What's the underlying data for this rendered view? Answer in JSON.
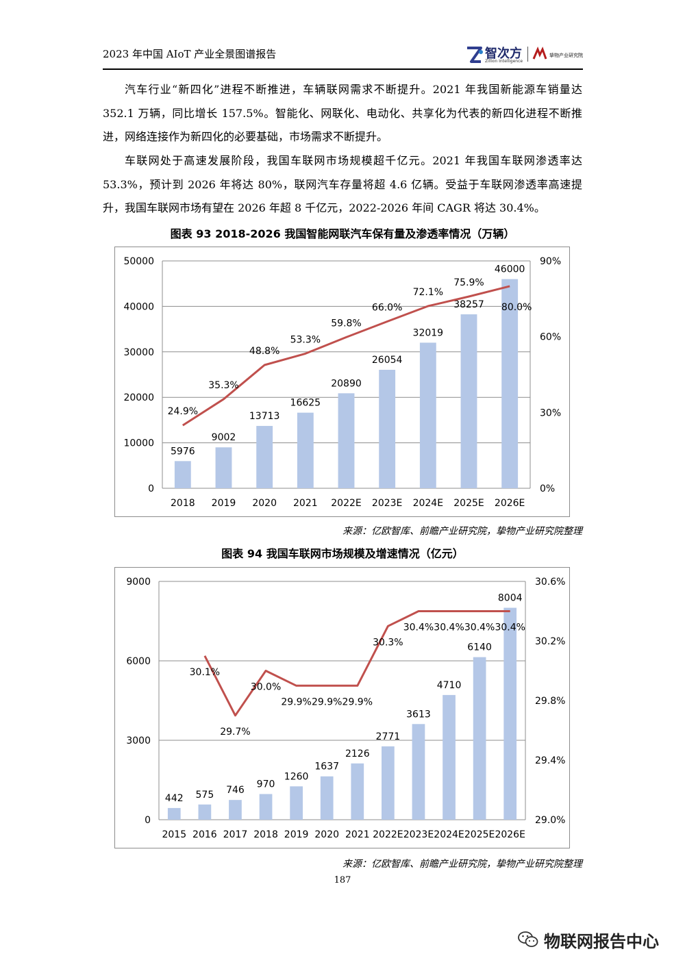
{
  "header": {
    "title": "2023 年中国 AIoT 产业全景图谱报告",
    "logo_main": "智次方",
    "logo_sub": "Zillion Intelligence",
    "logo_partner": "挚物产业研究院"
  },
  "paragraphs": [
    "汽车行业“新四化”进程不断推进，车辆联网需求不断提升。2021 年我国新能源车销量达 352.1 万辆，同比增长 157.5%。智能化、网联化、电动化、共享化为代表的新四化进程不断推进，网络连接作为新四化的必要基础，市场需求不断提升。",
    "车联网处于高速发展阶段，我国车联网市场规模超千亿元。2021 年我国车联网渗透率达 53.3%，预计到 2026 年将达 80%，联网汽车存量将超 4.6 亿辆。受益于车联网渗透率高速提升，我国车联网市场有望在 2026 年超 8 千亿元，2022-2026 年间 CAGR 将达 30.4%。"
  ],
  "figures": [
    {
      "caption": "图表 93   2018-2026 我国智能网联汽车保有量及渗透率情况（万辆）",
      "source": "来源：亿欧智库、前瞻产业研究院，挚物产业研究院整理"
    },
    {
      "caption": "图表 94   我国车联网市场规模及增速情况（亿元）",
      "source": "来源：亿欧智库、前瞻产业研究院，挚物产业研究院整理"
    }
  ],
  "page_number": "187",
  "watermark": "物联网报告中心",
  "chart_data": [
    {
      "type": "bar",
      "categories": [
        "2018",
        "2019",
        "2020",
        "2021",
        "2022E",
        "2023E",
        "2024E",
        "2025E",
        "2026E"
      ],
      "series": [
        {
          "type": "bar",
          "axis": "left",
          "color": "#b4c7e7",
          "values": [
            5976,
            9002,
            13713,
            16625,
            20890,
            26054,
            32019,
            38257,
            46000
          ],
          "labels": [
            "5976",
            "9002",
            "13713",
            "16625",
            "20890",
            "26054",
            "32019",
            "38257",
            "46000"
          ]
        },
        {
          "type": "line",
          "axis": "right",
          "color": "#c0504d",
          "values": [
            24.9,
            35.3,
            48.8,
            53.3,
            59.8,
            66.0,
            72.1,
            75.9,
            80.0
          ],
          "labels": [
            "24.9%",
            "35.3%",
            "48.8%",
            "53.3%",
            "59.8%",
            "66.0%",
            "72.1%",
            "75.9%",
            "80.0%"
          ]
        }
      ],
      "ylim_left": [
        0,
        50000
      ],
      "yticks_left": [
        0,
        10000,
        20000,
        30000,
        40000,
        50000
      ],
      "ytick_labels_left": [
        "0",
        "10000",
        "20000",
        "30000",
        "40000",
        "50000"
      ],
      "ylim_right": [
        0,
        90
      ],
      "yticks_right": [
        0,
        30,
        60,
        90
      ],
      "ytick_labels_right": [
        "0%",
        "30%",
        "60%",
        "90%"
      ],
      "grid": true
    },
    {
      "type": "bar",
      "categories": [
        "2015",
        "2016",
        "2017",
        "2018",
        "2019",
        "2020",
        "2021",
        "2022E",
        "2023E",
        "2024E",
        "2025E",
        "2026E"
      ],
      "series": [
        {
          "type": "bar",
          "axis": "left",
          "color": "#b4c7e7",
          "values": [
            442,
            575,
            746,
            970,
            1260,
            1637,
            2126,
            2771,
            3613,
            4710,
            6140,
            8004
          ],
          "labels": [
            "442",
            "575",
            "746",
            "970",
            "1260",
            "1637",
            "2126",
            "2771",
            "3613",
            "4710",
            "6140",
            "8004"
          ]
        },
        {
          "type": "line",
          "axis": "right",
          "color": "#c0504d",
          "values": [
            null,
            30.1,
            29.7,
            30.0,
            29.9,
            29.9,
            29.9,
            30.3,
            30.4,
            30.4,
            30.4,
            30.4
          ],
          "labels": [
            "",
            "30.1%",
            "29.7%",
            "30.0%",
            "29.9%",
            "29.9%",
            "29.9%",
            "30.3%",
            "30.4%",
            "30.4%",
            "30.4%",
            "30.4%"
          ]
        }
      ],
      "ylim_left": [
        0,
        9000
      ],
      "yticks_left": [
        0,
        3000,
        6000,
        9000
      ],
      "ytick_labels_left": [
        "0",
        "3000",
        "6000",
        "9000"
      ],
      "ylim_right": [
        29.0,
        30.6
      ],
      "yticks_right": [
        29.0,
        29.4,
        29.8,
        30.2,
        30.6
      ],
      "ytick_labels_right": [
        "29.0%",
        "29.4%",
        "29.8%",
        "30.2%",
        "30.6%"
      ],
      "grid": true
    }
  ]
}
